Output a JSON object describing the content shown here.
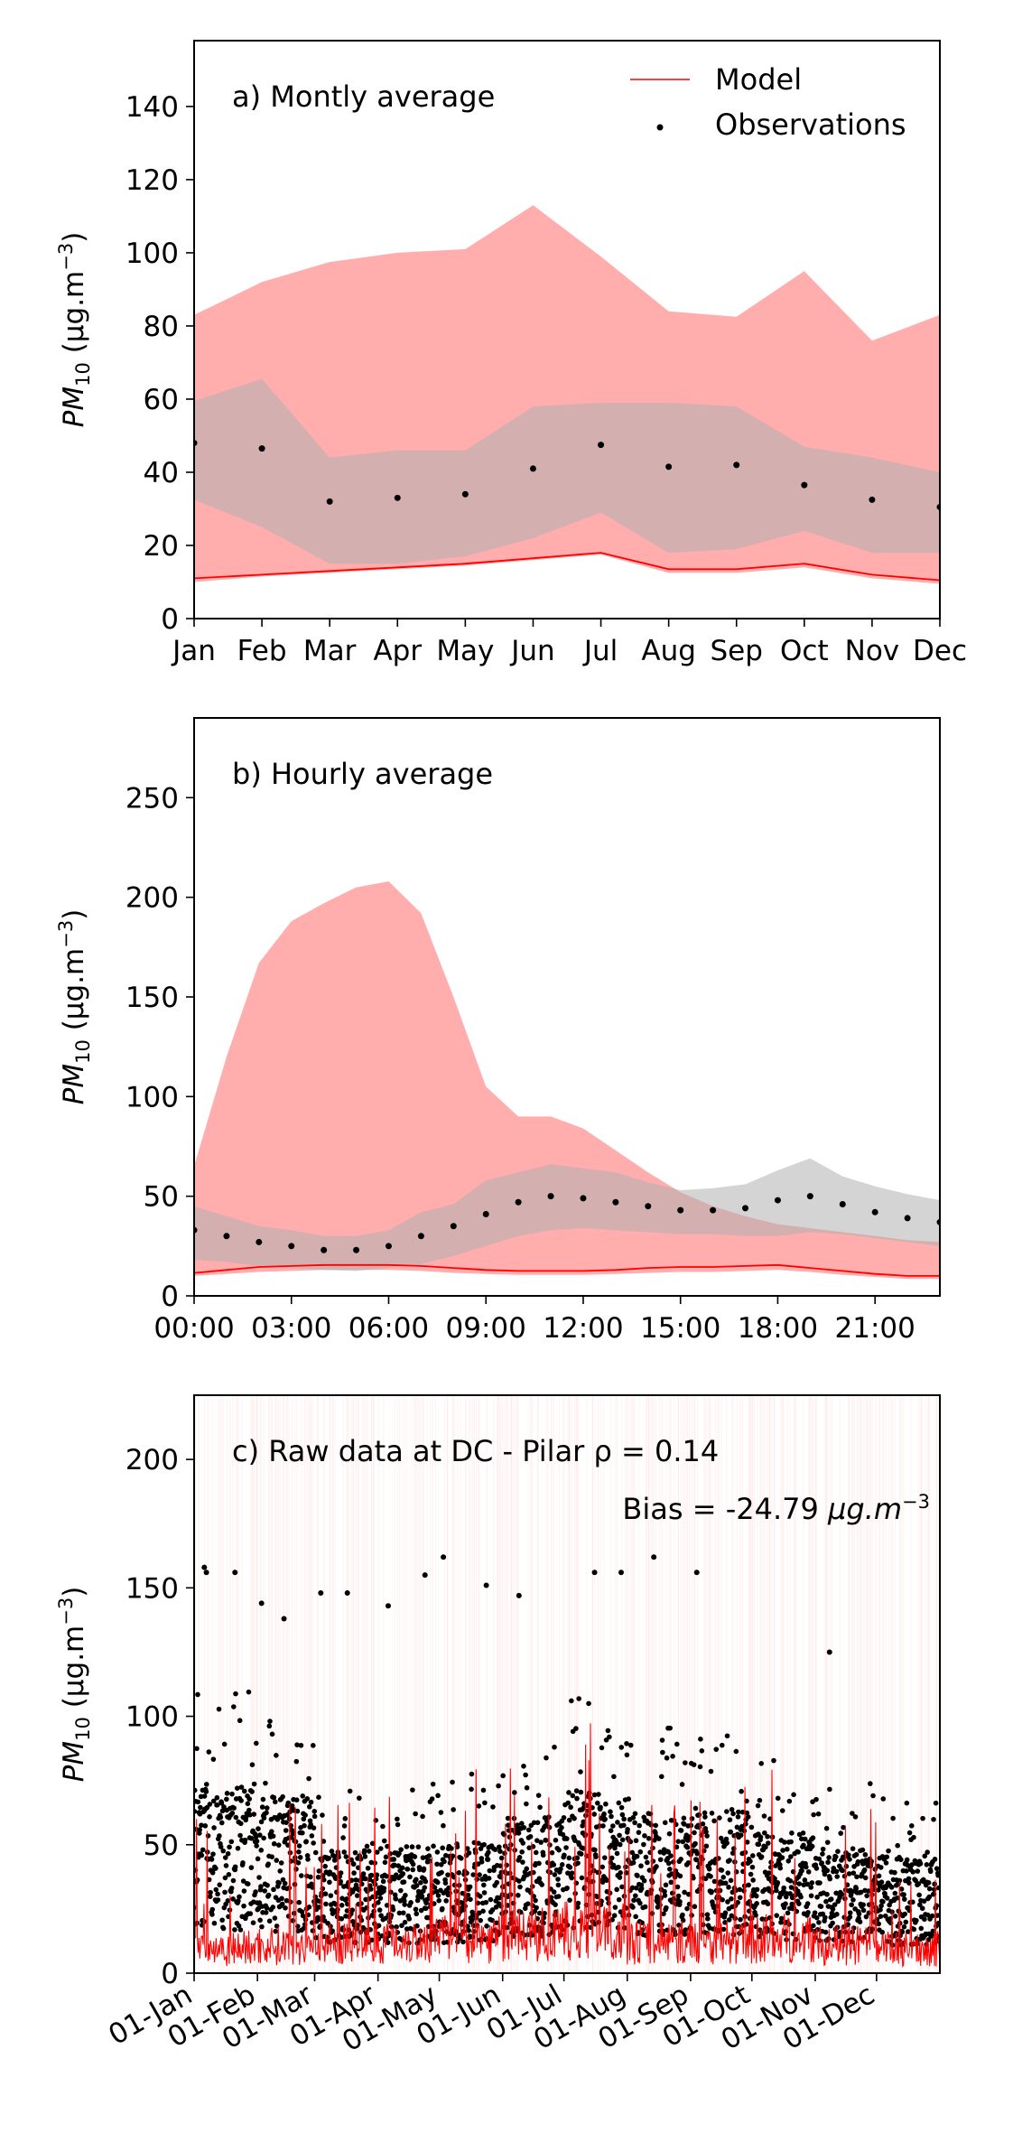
{
  "chart_data": [
    {
      "type": "area",
      "panel": "a",
      "annotation": "a) Montly average",
      "ylabel_main": "PM",
      "ylabel_sub": "10",
      "ylabel_unit": " (μg.m",
      "ylabel_exp": "−3",
      "ylabel_close": ")",
      "ylim": [
        0,
        158
      ],
      "yticks": [
        0,
        20,
        40,
        60,
        80,
        100,
        120,
        140
      ],
      "xlim": [
        0,
        11
      ],
      "categories": [
        "Jan",
        "Feb",
        "Mar",
        "Apr",
        "May",
        "Jun",
        "Jul",
        "Aug",
        "Sep",
        "Oct",
        "Nov",
        "Dec"
      ],
      "legend": {
        "position": "upper-right",
        "model": "Model",
        "observations": "Observations"
      },
      "series": [
        {
          "name": "Model",
          "kind": "line",
          "color": "#ff0000",
          "values": [
            11,
            12,
            13,
            14,
            15,
            16.5,
            18,
            13.5,
            13.5,
            15,
            12,
            10.5
          ]
        },
        {
          "kind": "band",
          "color": "#ff9999",
          "lower": [
            10,
            11.5,
            12.5,
            13.5,
            14.5,
            16,
            17.5,
            12.5,
            12.5,
            14,
            11,
            9.5
          ],
          "upper": [
            83,
            92,
            97.5,
            100,
            101,
            113,
            99,
            84,
            82.5,
            95,
            76,
            83
          ]
        },
        {
          "name": "Observations",
          "kind": "points",
          "color": "#000000",
          "values": [
            48,
            46.5,
            32,
            33,
            34,
            41,
            47.5,
            41.5,
            42,
            36.5,
            32.5,
            30.5
          ]
        },
        {
          "kind": "band",
          "color": "#b0b0b0",
          "lower": [
            32.5,
            25,
            15,
            15,
            17,
            22,
            29,
            18,
            19,
            24,
            18,
            18
          ],
          "upper": [
            59.5,
            65.5,
            44,
            46,
            46,
            58,
            59,
            59,
            58,
            47,
            44,
            40
          ]
        }
      ]
    },
    {
      "type": "area",
      "panel": "b",
      "annotation": "b) Hourly average",
      "ylabel_main": "PM",
      "ylabel_sub": "10",
      "ylabel_unit": " (μg.m",
      "ylabel_exp": "−3",
      "ylabel_close": ")",
      "ylim": [
        0,
        290
      ],
      "yticks": [
        0,
        50,
        100,
        150,
        200,
        250
      ],
      "xlim": [
        0,
        23
      ],
      "xticks": [
        "00:00",
        "03:00",
        "06:00",
        "09:00",
        "12:00",
        "15:00",
        "18:00",
        "21:00"
      ],
      "xtick_hours": [
        0,
        3,
        6,
        9,
        12,
        15,
        18,
        21
      ],
      "series": [
        {
          "name": "Model",
          "kind": "line",
          "color": "#ff0000",
          "values": [
            11.5,
            13,
            14.5,
            15,
            15.5,
            15.5,
            15.5,
            15,
            14,
            13,
            12.5,
            12.5,
            12.5,
            13,
            14,
            14.5,
            14.5,
            15,
            15.5,
            14,
            12.5,
            11,
            10,
            10
          ]
        },
        {
          "kind": "band",
          "color": "#ff9999",
          "lower": [
            10,
            11,
            12,
            12.5,
            13,
            13,
            13,
            12.5,
            11.5,
            11,
            10.5,
            10.5,
            10.5,
            11,
            11.5,
            12,
            12,
            12.5,
            13,
            12,
            10.5,
            9.5,
            8.5,
            8.5
          ],
          "upper": [
            65,
            120,
            167,
            188,
            197,
            205,
            208,
            192,
            150,
            105,
            90,
            90,
            84,
            73,
            62,
            52,
            45,
            40,
            36,
            34,
            32,
            30,
            28,
            27
          ]
        },
        {
          "name": "Observations",
          "kind": "points",
          "color": "#000000",
          "values": [
            33,
            30,
            27,
            25,
            23,
            23,
            25,
            30,
            35,
            41,
            47,
            50,
            49,
            47,
            45,
            43,
            43,
            44,
            48,
            50,
            46,
            42,
            39,
            37
          ]
        },
        {
          "kind": "band",
          "color": "#b0b0b0",
          "lower": [
            18,
            17,
            15,
            14,
            13,
            12.5,
            14,
            16,
            20,
            25,
            30,
            33,
            34,
            33,
            32,
            31,
            31,
            30,
            30,
            32,
            31,
            29,
            27,
            25
          ],
          "upper": [
            45,
            40,
            35,
            33,
            30,
            30,
            33,
            42,
            46,
            58,
            62,
            66,
            64,
            62,
            57,
            53,
            54,
            56,
            63,
            69,
            60,
            55,
            51,
            48
          ]
        }
      ]
    },
    {
      "type": "scatter",
      "panel": "c",
      "annotation_prefix": "c) Raw data at DC - Pilar ",
      "rho_symbol": "ρ",
      "rho_value": " = 0.14",
      "bias_prefix": "Bias = -24.79 ",
      "bias_unit": "μg.m",
      "bias_exp": "−3",
      "ylabel_main": "PM",
      "ylabel_sub": "10",
      "ylabel_unit": " (μg.m",
      "ylabel_exp": "−3",
      "ylabel_close": ")",
      "ylim": [
        0,
        225
      ],
      "yticks": [
        0,
        50,
        100,
        150,
        200
      ],
      "xlim": [
        0,
        365
      ],
      "xticks": [
        "01-Jan",
        "01-Feb",
        "01-Mar",
        "01-Apr",
        "01-May",
        "01-Jun",
        "01-Jul",
        "01-Aug",
        "01-Sep",
        "01-Oct",
        "01-Nov",
        "01-Dec"
      ],
      "xtick_days": [
        0,
        31,
        59,
        90,
        120,
        151,
        181,
        212,
        243,
        273,
        304,
        334
      ],
      "series": [
        {
          "name": "Model",
          "kind": "line",
          "color": "#ff0000"
        },
        {
          "name": "Observations",
          "kind": "points",
          "color": "#000000"
        }
      ],
      "monthly_observation_mean": [
        48,
        46.5,
        32,
        33,
        34,
        41,
        47.5,
        41.5,
        42,
        36.5,
        32.5,
        30.5
      ],
      "monthly_model_mean": [
        11,
        12,
        13,
        14,
        15,
        16.5,
        18,
        13.5,
        13.5,
        15,
        12,
        10.5
      ],
      "notable_observation_peaks": [
        {
          "day": 5,
          "value": 158
        },
        {
          "day": 6,
          "value": 156
        },
        {
          "day": 20,
          "value": 156
        },
        {
          "day": 33,
          "value": 144
        },
        {
          "day": 44,
          "value": 138
        },
        {
          "day": 62,
          "value": 148
        },
        {
          "day": 75,
          "value": 148
        },
        {
          "day": 95,
          "value": 143
        },
        {
          "day": 113,
          "value": 155
        },
        {
          "day": 122,
          "value": 162
        },
        {
          "day": 143,
          "value": 151
        },
        {
          "day": 159,
          "value": 147
        },
        {
          "day": 196,
          "value": 156
        },
        {
          "day": 209,
          "value": 156
        },
        {
          "day": 225,
          "value": 162
        },
        {
          "day": 246,
          "value": 156
        },
        {
          "day": 311,
          "value": 125
        }
      ]
    }
  ]
}
